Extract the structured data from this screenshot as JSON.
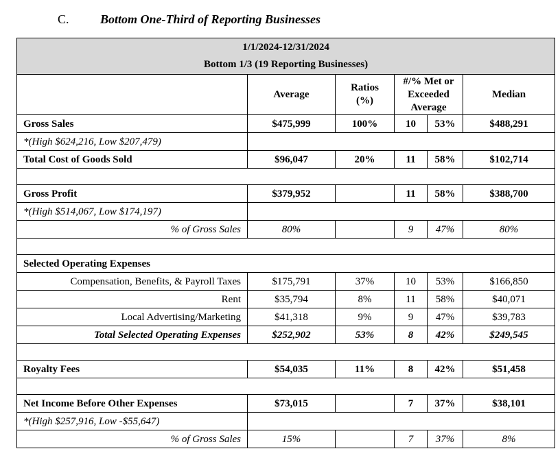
{
  "section": {
    "letter": "C.",
    "title": "Bottom One-Third of Reporting Businesses"
  },
  "header": {
    "period": "1/1/2024-12/31/2024",
    "group": "Bottom 1/3 (19 Reporting Businesses)",
    "cols": {
      "average": "Average",
      "ratios": "Ratios (%)",
      "met_line1": "#/% Met or",
      "met_line2": "Exceeded",
      "met_line3": "Average",
      "median": "Median"
    }
  },
  "rows": {
    "gross_sales": {
      "label": "Gross Sales",
      "avg": "$475,999",
      "ratio": "100%",
      "n": "10",
      "pct": "53%",
      "median": "$488,291"
    },
    "gross_sales_note": "*(High $624,216, Low $207,479)",
    "cogs": {
      "label": "Total Cost of Goods Sold",
      "avg": "$96,047",
      "ratio": "20%",
      "n": "11",
      "pct": "58%",
      "median": "$102,714"
    },
    "gross_profit": {
      "label": "Gross Profit",
      "avg": "$379,952",
      "ratio": "",
      "n": "11",
      "pct": "58%",
      "median": "$388,700"
    },
    "gross_profit_note": "*(High $514,067, Low $174,197)",
    "gp_pct": {
      "label": "% of Gross Sales",
      "avg": "80%",
      "ratio": "",
      "n": "9",
      "pct": "47%",
      "median": "80%"
    },
    "soe_label": "Selected Operating Expenses",
    "comp": {
      "label": "Compensation, Benefits, & Payroll Taxes",
      "avg": "$175,791",
      "ratio": "37%",
      "n": "10",
      "pct": "53%",
      "median": "$166,850"
    },
    "rent": {
      "label": "Rent",
      "avg": "$35,794",
      "ratio": "8%",
      "n": "11",
      "pct": "58%",
      "median": "$40,071"
    },
    "adv": {
      "label": "Local Advertising/Marketing",
      "avg": "$41,318",
      "ratio": "9%",
      "n": "9",
      "pct": "47%",
      "median": "$39,783"
    },
    "total_soe": {
      "label": "Total Selected Operating Expenses",
      "avg": "$252,902",
      "ratio": "53%",
      "n": "8",
      "pct": "42%",
      "median": "$249,545"
    },
    "royalty": {
      "label": "Royalty Fees",
      "avg": "$54,035",
      "ratio": "11%",
      "n": "8",
      "pct": "42%",
      "median": "$51,458"
    },
    "net_income": {
      "label": "Net Income Before Other Expenses",
      "avg": "$73,015",
      "ratio": "",
      "n": "7",
      "pct": "37%",
      "median": "$38,101"
    },
    "net_income_note": "*(High $257,916, Low -$55,647)",
    "ni_pct": {
      "label": "% of Gross Sales",
      "avg": "15%",
      "ratio": "",
      "n": "7",
      "pct": "37%",
      "median": "8%"
    }
  }
}
